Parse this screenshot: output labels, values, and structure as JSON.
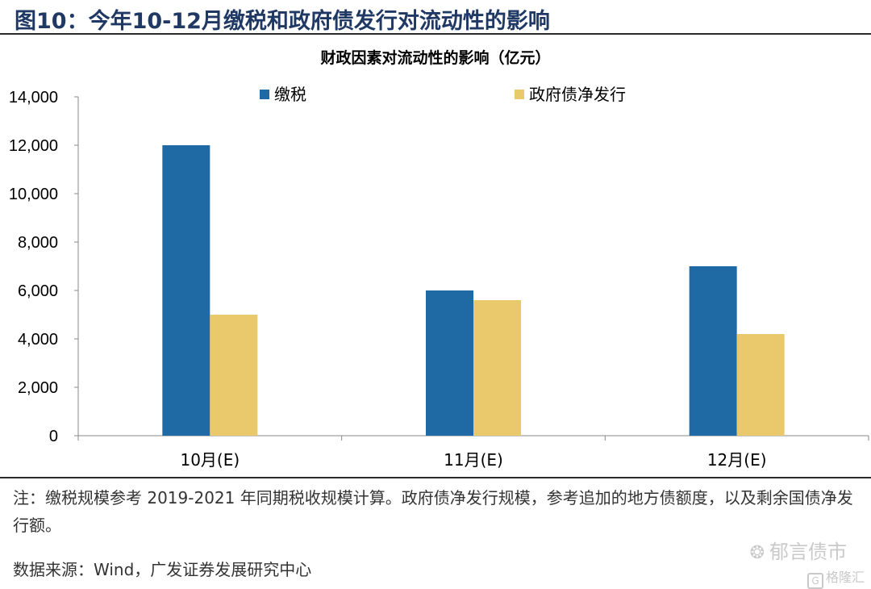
{
  "figure_title": "图10：今年10-12月缴税和政府债发行对流动性的影响",
  "note": "注：缴税规模参考 2019-2021 年同期税收规模计算。政府债净发行规模，参考追加的地方债额度，以及剩余国债净发行额。",
  "source": "数据来源：Wind，广发证券发展研究中心",
  "watermark": "郁言债市",
  "watermark_icon": "wechat-icon",
  "watermark2": "格隆汇",
  "watermark2_icon": "G",
  "chart_data": {
    "type": "bar",
    "title": "财政因素对流动性的影响（亿元）",
    "xlabel": "",
    "ylabel": "",
    "categories": [
      "10月(E)",
      "11月(E)",
      "12月(E)"
    ],
    "series": [
      {
        "name": "缴税",
        "color": "#1f6aa5",
        "values": [
          12000,
          6000,
          7000
        ]
      },
      {
        "name": "政府债净发行",
        "color": "#e9c96b",
        "values": [
          5000,
          5600,
          4200
        ]
      }
    ],
    "ylim": [
      0,
      14000
    ],
    "yticks": [
      "0",
      "2,000",
      "4,000",
      "6,000",
      "8,000",
      "10,000",
      "12,000",
      "14,000"
    ],
    "legend_position": "top",
    "grid": false
  }
}
